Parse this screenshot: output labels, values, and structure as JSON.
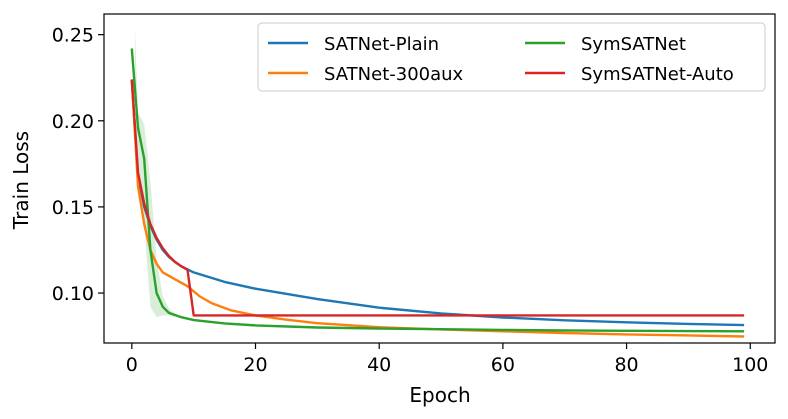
{
  "chart_data": {
    "type": "line",
    "xlabel": "Epoch",
    "ylabel": "Train Loss",
    "xlim": [
      -4.5,
      104
    ],
    "ylim": [
      0.071,
      0.262
    ],
    "xticks": [
      0,
      20,
      40,
      60,
      80,
      100
    ],
    "yticks": [
      0.1,
      0.15,
      0.2,
      0.25
    ],
    "x_tick_labels": [
      "0",
      "20",
      "40",
      "60",
      "80",
      "100"
    ],
    "y_tick_labels": [
      "0.10",
      "0.15",
      "0.20",
      "0.25"
    ],
    "grid": false,
    "legend_placement": "top-right",
    "legend_columns": 2,
    "series": [
      {
        "name": "SATNet-Plain",
        "color": "#1f77b4",
        "points": [
          [
            0,
            0.224
          ],
          [
            1,
            0.168
          ],
          [
            2,
            0.15
          ],
          [
            3,
            0.139
          ],
          [
            4,
            0.131
          ],
          [
            5,
            0.125
          ],
          [
            6,
            0.121
          ],
          [
            7,
            0.118
          ],
          [
            8,
            0.1155
          ],
          [
            10,
            0.112
          ],
          [
            15,
            0.1065
          ],
          [
            20,
            0.1025
          ],
          [
            30,
            0.0965
          ],
          [
            40,
            0.0915
          ],
          [
            50,
            0.0882
          ],
          [
            60,
            0.0858
          ],
          [
            70,
            0.0842
          ],
          [
            80,
            0.083
          ],
          [
            90,
            0.0821
          ],
          [
            99,
            0.0814
          ]
        ]
      },
      {
        "name": "SATNet-300aux",
        "color": "#ff7f0e",
        "points": [
          [
            0,
            0.224
          ],
          [
            1,
            0.162
          ],
          [
            2,
            0.14
          ],
          [
            3,
            0.125
          ],
          [
            4,
            0.117
          ],
          [
            5,
            0.112
          ],
          [
            7,
            0.108
          ],
          [
            9,
            0.104
          ],
          [
            11,
            0.098
          ],
          [
            13,
            0.094
          ],
          [
            16,
            0.09
          ],
          [
            20,
            0.087
          ],
          [
            25,
            0.0845
          ],
          [
            30,
            0.0825
          ],
          [
            40,
            0.0802
          ],
          [
            50,
            0.0789
          ],
          [
            60,
            0.0778
          ],
          [
            70,
            0.0768
          ],
          [
            80,
            0.076
          ],
          [
            90,
            0.0754
          ],
          [
            99,
            0.0748
          ]
        ]
      },
      {
        "name": "SymSATNet",
        "color": "#2ca02c",
        "points": [
          [
            0,
            0.242
          ],
          [
            1,
            0.196
          ],
          [
            2,
            0.178
          ],
          [
            3,
            0.125
          ],
          [
            4,
            0.1
          ],
          [
            5,
            0.092
          ],
          [
            6,
            0.0885
          ],
          [
            8,
            0.086
          ],
          [
            10,
            0.0843
          ],
          [
            15,
            0.0824
          ],
          [
            20,
            0.0812
          ],
          [
            30,
            0.08
          ],
          [
            40,
            0.0794
          ],
          [
            50,
            0.079
          ],
          [
            60,
            0.0786
          ],
          [
            70,
            0.0783
          ],
          [
            80,
            0.0781
          ],
          [
            90,
            0.0779
          ],
          [
            99,
            0.0778
          ]
        ]
      },
      {
        "name": "SymSATNet-Auto",
        "color": "#d62728",
        "points": [
          [
            0,
            0.224
          ],
          [
            1,
            0.17
          ],
          [
            2,
            0.152
          ],
          [
            3,
            0.14
          ],
          [
            4,
            0.132
          ],
          [
            5,
            0.126
          ],
          [
            6,
            0.1215
          ],
          [
            7,
            0.118
          ],
          [
            8,
            0.1155
          ],
          [
            9,
            0.1135
          ],
          [
            10,
            0.087
          ],
          [
            20,
            0.087
          ],
          [
            40,
            0.087
          ],
          [
            60,
            0.087
          ],
          [
            80,
            0.087
          ],
          [
            99,
            0.087
          ]
        ]
      }
    ]
  }
}
